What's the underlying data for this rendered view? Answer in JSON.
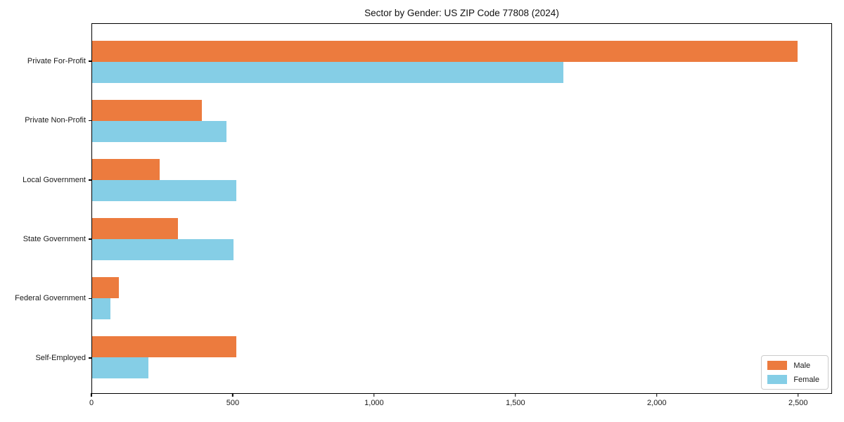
{
  "title": "Sector by Gender: US ZIP Code 77808 (2024)",
  "colors": {
    "male": "#EC7B3E",
    "female": "#85CEE6",
    "axis": "#000000",
    "legend_border": "#cccccc",
    "background": "#ffffff"
  },
  "legend": {
    "position": "lower right",
    "items": [
      {
        "label": "Male",
        "color": "#EC7B3E"
      },
      {
        "label": "Female",
        "color": "#85CEE6"
      }
    ]
  },
  "chart_data": {
    "type": "bar",
    "orientation": "horizontal",
    "title": "Sector by Gender: US ZIP Code 77808 (2024)",
    "categories": [
      "Private For-Profit",
      "Private Non-Profit",
      "Local Government",
      "State Government",
      "Federal Government",
      "Self-Employed"
    ],
    "series": [
      {
        "name": "Male",
        "color": "#EC7B3E",
        "values": [
          2500,
          390,
          240,
          305,
          95,
          510
        ]
      },
      {
        "name": "Female",
        "color": "#85CEE6",
        "values": [
          1670,
          475,
          510,
          500,
          65,
          200
        ]
      }
    ],
    "xlabel": "",
    "ylabel": "",
    "xlim": [
      0,
      2620
    ],
    "xticks": [
      0,
      500,
      1000,
      1500,
      2000,
      2500
    ],
    "xtick_labels": [
      "0",
      "500",
      "1,000",
      "1,500",
      "2,000",
      "2,500"
    ],
    "grid": false,
    "legend_position": "lower right"
  }
}
